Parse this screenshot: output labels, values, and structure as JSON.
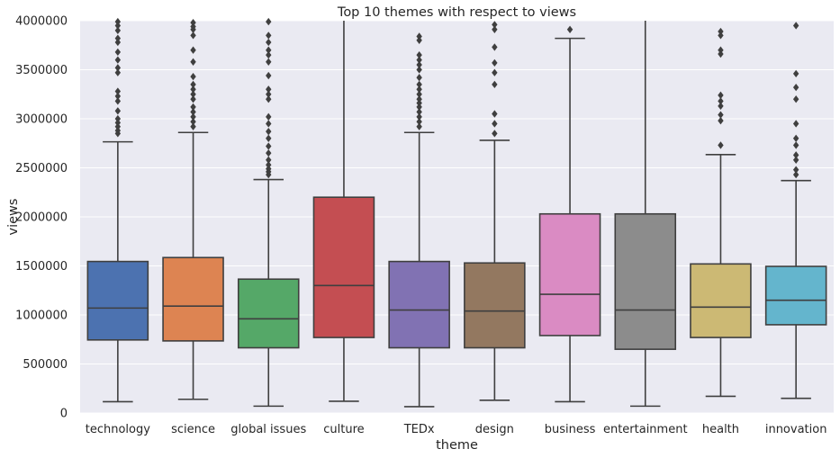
{
  "chart_data": {
    "type": "boxplot",
    "title": "Top 10 themes with respect to views",
    "xlabel": "theme",
    "ylabel": "views",
    "ylim": [
      0,
      4000000
    ],
    "yticks": [
      "0",
      "500000",
      "1000000",
      "1500000",
      "2000000",
      "2500000",
      "3000000",
      "3500000",
      "4000000"
    ],
    "grid": true,
    "categories": [
      "technology",
      "science",
      "global issues",
      "culture",
      "TEDx",
      "design",
      "business",
      "entertainment",
      "health",
      "innovation"
    ],
    "colors": [
      "#4c72b0",
      "#dd8452",
      "#55a868",
      "#c44e52",
      "#8172b3",
      "#937860",
      "#da8bc3",
      "#8c8c8c",
      "#ccb974",
      "#64b5cd"
    ],
    "boxes": [
      {
        "whisker_low": 115000,
        "q1": 745000,
        "median": 1070000,
        "q3": 1545000,
        "whisker_high": 2765000,
        "outliers": [
          2850000,
          2880000,
          2920000,
          2960000,
          3000000,
          3080000,
          3180000,
          3230000,
          3280000,
          3470000,
          3520000,
          3600000,
          3680000,
          3780000,
          3820000,
          3900000,
          3950000,
          3990000
        ]
      },
      {
        "whisker_low": 140000,
        "q1": 735000,
        "median": 1090000,
        "q3": 1585000,
        "whisker_high": 2860000,
        "outliers": [
          2920000,
          2970000,
          3020000,
          3070000,
          3120000,
          3200000,
          3250000,
          3300000,
          3350000,
          3430000,
          3580000,
          3700000,
          3850000,
          3910000,
          3940000,
          3980000
        ]
      },
      {
        "whisker_low": 70000,
        "q1": 665000,
        "median": 960000,
        "q3": 1365000,
        "whisker_high": 2380000,
        "outliers": [
          2430000,
          2460000,
          2490000,
          2530000,
          2580000,
          2650000,
          2720000,
          2800000,
          2870000,
          2950000,
          3020000,
          3200000,
          3250000,
          3300000,
          3440000,
          3580000,
          3650000,
          3700000,
          3780000,
          3850000,
          3990000
        ]
      },
      {
        "whisker_low": 120000,
        "q1": 770000,
        "median": 1300000,
        "q3": 2200000,
        "whisker_high": 4000000,
        "outliers": []
      },
      {
        "whisker_low": 65000,
        "q1": 665000,
        "median": 1050000,
        "q3": 1545000,
        "whisker_high": 2860000,
        "outliers": [
          2920000,
          2970000,
          3020000,
          3070000,
          3120000,
          3160000,
          3200000,
          3250000,
          3300000,
          3350000,
          3420000,
          3500000,
          3550000,
          3600000,
          3650000,
          3800000,
          3840000
        ]
      },
      {
        "whisker_low": 130000,
        "q1": 665000,
        "median": 1040000,
        "q3": 1530000,
        "whisker_high": 2780000,
        "outliers": [
          2850000,
          2950000,
          3050000,
          3350000,
          3470000,
          3570000,
          3730000,
          3910000,
          3960000
        ]
      },
      {
        "whisker_low": 115000,
        "q1": 790000,
        "median": 1210000,
        "q3": 2030000,
        "whisker_high": 3820000,
        "outliers": [
          3910000
        ]
      },
      {
        "whisker_low": 70000,
        "q1": 650000,
        "median": 1050000,
        "q3": 2030000,
        "whisker_high": 4000000,
        "outliers": []
      },
      {
        "whisker_low": 170000,
        "q1": 770000,
        "median": 1080000,
        "q3": 1520000,
        "whisker_high": 2635000,
        "outliers": [
          2730000,
          2980000,
          3040000,
          3130000,
          3180000,
          3240000,
          3660000,
          3700000,
          3850000,
          3890000
        ]
      },
      {
        "whisker_low": 150000,
        "q1": 900000,
        "median": 1150000,
        "q3": 1495000,
        "whisker_high": 2370000,
        "outliers": [
          2430000,
          2480000,
          2580000,
          2630000,
          2730000,
          2800000,
          2950000,
          3200000,
          3320000,
          3460000,
          3950000
        ]
      }
    ]
  }
}
